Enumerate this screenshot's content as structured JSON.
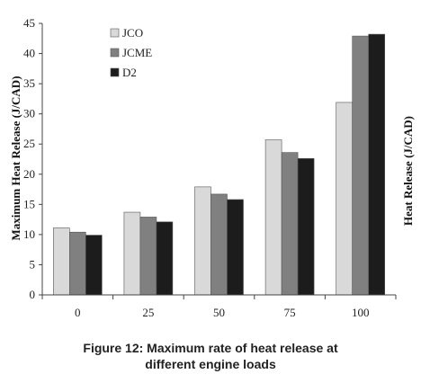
{
  "chart_data": {
    "type": "bar",
    "ylabel": "Maximum Heat Release (J/CAD)",
    "side_label": "Heat Release (J/CAD)",
    "categories": [
      "0",
      "25",
      "50",
      "75",
      "100"
    ],
    "ylim": [
      0,
      45
    ],
    "yticks": [
      "0",
      "5",
      "10",
      "15",
      "20",
      "25",
      "30",
      "35",
      "40",
      "45"
    ],
    "legend_position": "top-left",
    "grid": false,
    "series": [
      {
        "name": "JCO",
        "color": "#d9d9d9",
        "values": [
          11.1,
          13.7,
          17.9,
          25.7,
          31.9
        ]
      },
      {
        "name": "JCME",
        "color": "#808080",
        "values": [
          10.4,
          12.9,
          16.7,
          23.6,
          42.9
        ]
      },
      {
        "name": "D2",
        "color": "#1c1c1c",
        "values": [
          9.9,
          12.1,
          15.8,
          22.6,
          43.2
        ]
      }
    ]
  },
  "caption": {
    "line1": "Figure 12: Maximum rate of heat release at",
    "line2": "different engine loads"
  }
}
